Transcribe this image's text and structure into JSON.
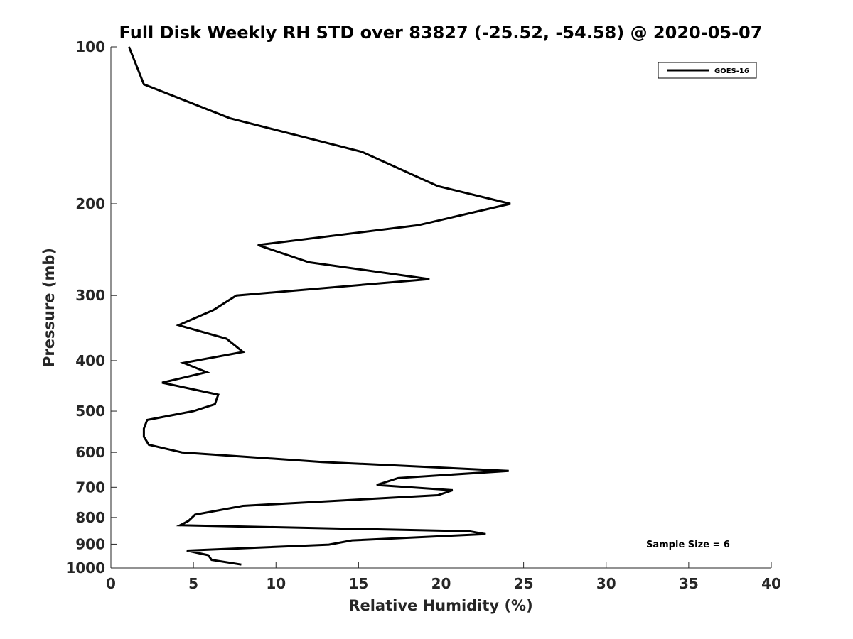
{
  "chart_data": {
    "type": "line",
    "title": "Full Disk Weekly RH STD over 83827 (-25.52, -54.58) @ 2020-05-07",
    "xlabel": "Relative Humidity (%)",
    "ylabel": "Pressure (mb)",
    "xlim": [
      0,
      40
    ],
    "ylim": [
      100,
      1000
    ],
    "yscale": "log",
    "y_reversed": true,
    "grid": false,
    "xticks": [
      0,
      5,
      10,
      15,
      20,
      25,
      30,
      35,
      40
    ],
    "yticks": [
      100,
      200,
      300,
      400,
      500,
      600,
      700,
      800,
      900,
      1000
    ],
    "legend_position": "top-right",
    "annotation": "Sample Size = 6",
    "series": [
      {
        "name": "GOES-16",
        "color": "#000000",
        "x": [
          1.1,
          2.0,
          7.2,
          15.2,
          19.8,
          24.2,
          18.6,
          8.9,
          12.0,
          19.3,
          7.6,
          6.2,
          4.1,
          7.0,
          8.0,
          4.4,
          5.8,
          3.1,
          6.5,
          6.3,
          5.0,
          2.2,
          2.0,
          2.0,
          2.3,
          4.3,
          12.8,
          24.1,
          17.4,
          16.1,
          20.7,
          19.8,
          8.0,
          5.1,
          4.7,
          4.2,
          21.7,
          22.7,
          14.6,
          13.2,
          4.6,
          5.9,
          6.1,
          7.9
        ],
        "y": [
          100,
          118,
          137,
          159,
          185,
          200,
          220,
          240,
          259,
          279,
          300,
          320,
          342,
          363,
          385,
          404,
          421,
          441,
          465,
          485,
          500,
          520,
          540,
          560,
          580,
          600,
          626,
          651,
          672,
          693,
          709,
          725,
          760,
          790,
          812,
          828,
          850,
          861,
          885,
          902,
          926,
          945,
          965,
          985
        ]
      }
    ]
  }
}
